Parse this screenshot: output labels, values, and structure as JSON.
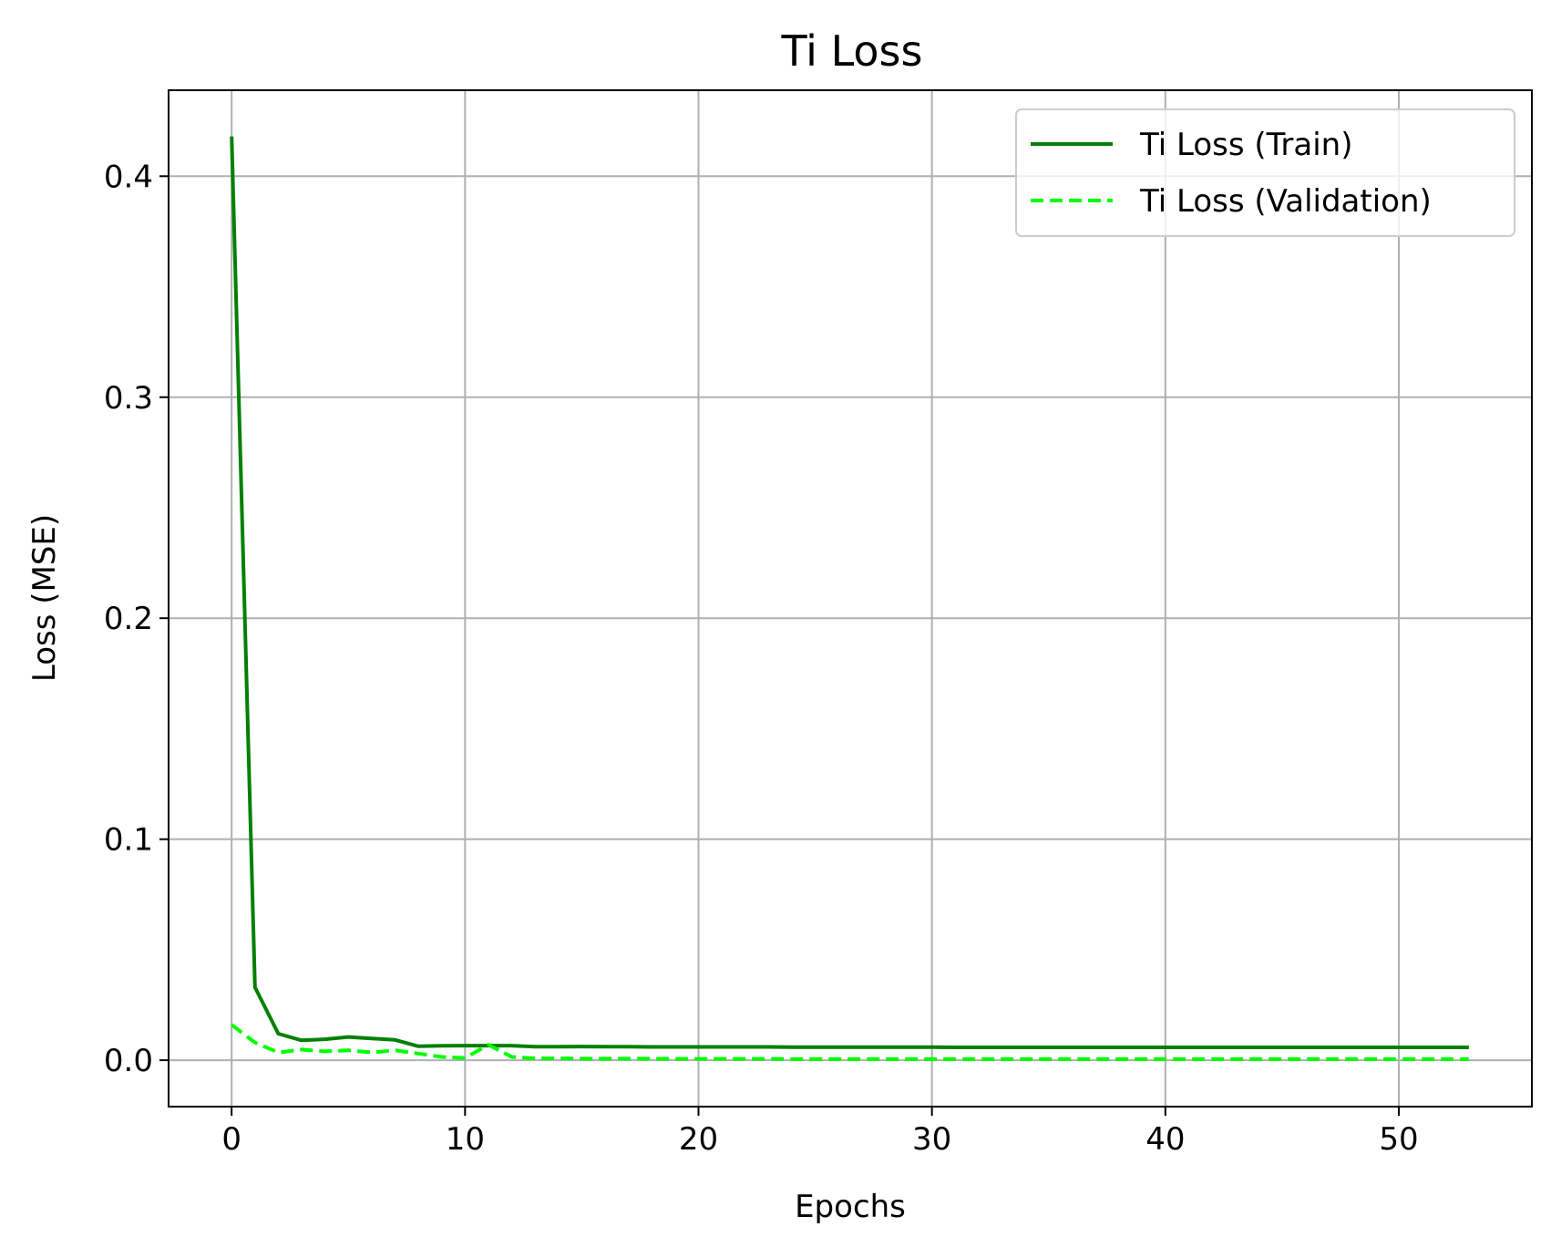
{
  "chart_data": {
    "type": "line",
    "title": "Ti Loss",
    "xlabel": "Epochs",
    "ylabel": "Loss (MSE)",
    "xlim": [
      -2.7,
      55.7
    ],
    "ylim": [
      -0.021,
      0.4389
    ],
    "xticks": [
      0,
      10,
      20,
      30,
      40,
      50
    ],
    "yticks": [
      0.0,
      0.1,
      0.2,
      0.3,
      0.4
    ],
    "xtick_labels": [
      "0",
      "10",
      "20",
      "30",
      "40",
      "50"
    ],
    "ytick_labels": [
      "0.0",
      "0.1",
      "0.2",
      "0.3",
      "0.4"
    ],
    "grid": true,
    "legend_position": "top-right",
    "x": [
      0,
      1,
      2,
      3,
      4,
      5,
      6,
      7,
      8,
      9,
      10,
      11,
      12,
      13,
      14,
      15,
      16,
      17,
      18,
      19,
      20,
      21,
      22,
      23,
      24,
      25,
      26,
      27,
      28,
      29,
      30,
      31,
      32,
      33,
      34,
      35,
      36,
      37,
      38,
      39,
      40,
      41,
      42,
      43,
      44,
      45,
      46,
      47,
      48,
      49,
      50,
      51,
      52,
      53
    ],
    "series": [
      {
        "name": "Ti Loss (Train)",
        "color": "#008000",
        "dash": "solid",
        "values": [
          0.418,
          0.033,
          0.012,
          0.009,
          0.0095,
          0.0105,
          0.0098,
          0.0092,
          0.0063,
          0.0065,
          0.0066,
          0.0066,
          0.0066,
          0.0061,
          0.0061,
          0.0062,
          0.0061,
          0.0061,
          0.006,
          0.006,
          0.006,
          0.006,
          0.006,
          0.006,
          0.0059,
          0.0059,
          0.0059,
          0.0059,
          0.0059,
          0.0059,
          0.0059,
          0.0058,
          0.0058,
          0.0058,
          0.0058,
          0.0058,
          0.0058,
          0.0058,
          0.0058,
          0.0058,
          0.0058,
          0.0058,
          0.0058,
          0.0058,
          0.0058,
          0.0058,
          0.0058,
          0.0058,
          0.0058,
          0.0058,
          0.0058,
          0.0058,
          0.0058,
          0.0058
        ]
      },
      {
        "name": "Ti Loss (Validation)",
        "color": "#00ff00",
        "dash": "dashed",
        "values": [
          0.016,
          0.008,
          0.0035,
          0.0048,
          0.004,
          0.0045,
          0.0035,
          0.0045,
          0.003,
          0.0015,
          0.001,
          0.007,
          0.0015,
          0.0008,
          0.0008,
          0.0007,
          0.0007,
          0.0007,
          0.0007,
          0.0006,
          0.0006,
          0.0006,
          0.0006,
          0.0006,
          0.0005,
          0.0005,
          0.0005,
          0.0005,
          0.0005,
          0.0005,
          0.0005,
          0.0005,
          0.0005,
          0.0005,
          0.0005,
          0.0005,
          0.0005,
          0.0005,
          0.0005,
          0.0005,
          0.0005,
          0.0005,
          0.0005,
          0.0005,
          0.0005,
          0.0005,
          0.0005,
          0.0005,
          0.0005,
          0.0005,
          0.0005,
          0.0005,
          0.0005,
          0.0005
        ]
      }
    ]
  }
}
